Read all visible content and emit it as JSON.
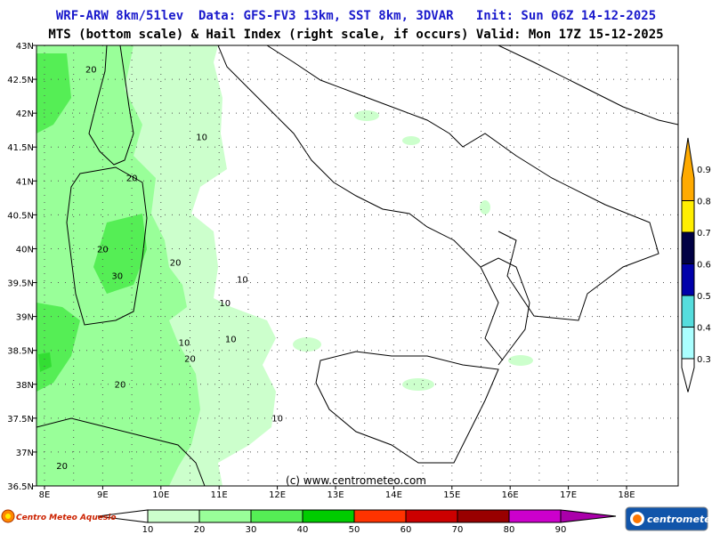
{
  "header": {
    "title_line1": "WRF-ARW 8km/51lev  Data: GFS-FV3 13km, SST 8km, 3DVAR   Init: Sun 06Z 14-12-2025",
    "title_line2": "MTS (bottom scale) & Hail Index (right scale, if occurs) Valid: Mon 17Z 15-12-2025"
  },
  "map": {
    "lat_labels": [
      "43N",
      "42.5N",
      "42N",
      "41.5N",
      "41N",
      "40.5N",
      "40N",
      "39.5N",
      "39N",
      "38.5N",
      "38N",
      "37.5N",
      "37N",
      "36.5N"
    ],
    "lon_labels": [
      "8E",
      "9E",
      "10E",
      "11E",
      "12E",
      "13E",
      "14E",
      "15E",
      "16E",
      "17E",
      "18E"
    ],
    "contour_labels": [
      {
        "text": "20",
        "lon": 8.8,
        "lat": 42.6
      },
      {
        "text": "10",
        "lon": 10.7,
        "lat": 41.6
      },
      {
        "text": "20",
        "lon": 9.5,
        "lat": 41.0
      },
      {
        "text": "20",
        "lon": 9.0,
        "lat": 39.95
      },
      {
        "text": "30",
        "lon": 9.25,
        "lat": 39.55
      },
      {
        "text": "20",
        "lon": 10.25,
        "lat": 39.75
      },
      {
        "text": "10",
        "lon": 11.4,
        "lat": 39.5
      },
      {
        "text": "10",
        "lon": 11.1,
        "lat": 39.15
      },
      {
        "text": "10",
        "lon": 11.2,
        "lat": 38.62
      },
      {
        "text": "10",
        "lon": 10.4,
        "lat": 38.57
      },
      {
        "text": "20",
        "lon": 10.5,
        "lat": 38.33
      },
      {
        "text": "20",
        "lon": 9.3,
        "lat": 37.95
      },
      {
        "text": "10",
        "lon": 12.0,
        "lat": 37.45
      },
      {
        "text": "20",
        "lon": 8.3,
        "lat": 36.75
      }
    ],
    "copyright": "(c) www.centrometeo.com"
  },
  "hail_scale": {
    "ticks": [
      "0.3",
      "0.4",
      "0.5",
      "0.6",
      "0.7",
      "0.8",
      "0.9"
    ],
    "colors": [
      "#ffffff",
      "#aaffff",
      "#55dddd",
      "#0000aa",
      "#000044",
      "#ffee00",
      "#ffaa00"
    ]
  },
  "mts_scale": {
    "ticks": [
      "10",
      "20",
      "30",
      "40",
      "50",
      "60",
      "70",
      "80",
      "90"
    ],
    "colors": [
      "#ccffcc",
      "#99ff99",
      "#55ee55",
      "#00cc00",
      "#ff3300",
      "#cc0000",
      "#990000",
      "#cc00cc",
      "#aa00aa"
    ]
  },
  "logos": {
    "left_text": "Centro Meteo Aquesio",
    "right_text": "centrometeo"
  },
  "colors": {
    "land_border": "#000000",
    "region_border": "#888888",
    "mts_light": "#ccffcc",
    "mts_mid": "#99ff99",
    "mts_high": "#55ee55"
  }
}
